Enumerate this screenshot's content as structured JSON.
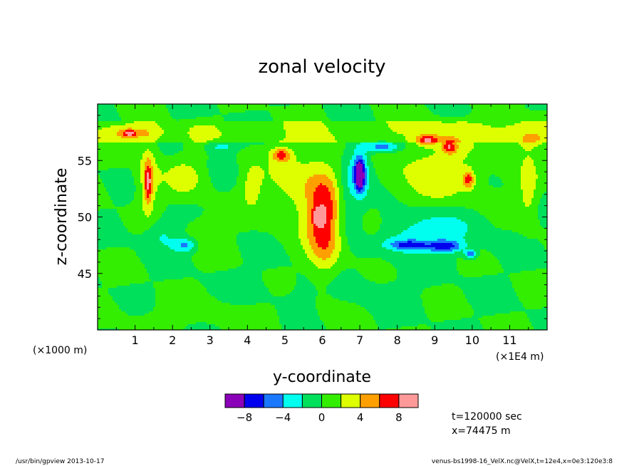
{
  "chart_data": {
    "type": "heatmap",
    "title": "zonal velocity",
    "xlabel": "y-coordinate",
    "ylabel": "z-coordinate",
    "x_unit_left": "(×1000 m)",
    "x_unit_right": "(×1E4 m)",
    "xlim": [
      0,
      12
    ],
    "ylim": [
      40,
      60
    ],
    "x_ticks": [
      "1",
      "2",
      "3",
      "4",
      "5",
      "6",
      "7",
      "8",
      "9",
      "10",
      "11"
    ],
    "y_ticks": [
      "45",
      "50",
      "55"
    ],
    "colorbar": {
      "levels": [
        -10,
        -8,
        -6,
        -4,
        -2,
        0,
        2,
        4,
        6,
        8,
        10
      ],
      "labels": [
        "−8",
        "−4",
        "0",
        "4",
        "8"
      ],
      "colors": [
        "#8a00b8",
        "#0000ee",
        "#1a78ff",
        "#00ffee",
        "#00e05a",
        "#33ee00",
        "#ddff00",
        "#ffa000",
        "#ff0000",
        "#ff9999"
      ]
    },
    "info": [
      "t=120000 sec",
      "x=74475 m"
    ],
    "blobs": [
      {
        "x": 6.05,
        "y": 49.5,
        "rx": 0.45,
        "ry": 4.5,
        "v": 7
      },
      {
        "x": 5.9,
        "y": 50.0,
        "rx": 0.12,
        "ry": 0.6,
        "v": 9
      },
      {
        "x": 5.4,
        "y": 52.5,
        "rx": 0.9,
        "ry": 3.5,
        "v": 3
      },
      {
        "x": 4.9,
        "y": 55.5,
        "rx": 0.25,
        "ry": 0.6,
        "v": 6
      },
      {
        "x": 1.35,
        "y": 53.5,
        "rx": 0.3,
        "ry": 3.5,
        "v": 3.5
      },
      {
        "x": 1.35,
        "y": 53.0,
        "rx": 0.1,
        "ry": 1.8,
        "v": 6
      },
      {
        "x": 0.9,
        "y": 57.4,
        "rx": 0.8,
        "ry": 0.6,
        "v": 3
      },
      {
        "x": 0.85,
        "y": 57.4,
        "rx": 0.15,
        "ry": 0.3,
        "v": 6
      },
      {
        "x": 2.3,
        "y": 53.5,
        "rx": 0.5,
        "ry": 1.5,
        "v": 3
      },
      {
        "x": 7.0,
        "y": 54.0,
        "rx": 0.3,
        "ry": 2.5,
        "v": -5
      },
      {
        "x": 7.0,
        "y": 53.7,
        "rx": 0.12,
        "ry": 1.3,
        "v": -9
      },
      {
        "x": 7.6,
        "y": 56.2,
        "rx": 0.45,
        "ry": 0.5,
        "v": -6
      },
      {
        "x": 8.7,
        "y": 48.8,
        "rx": 1.4,
        "ry": 2.0,
        "v": -3.5
      },
      {
        "x": 8.3,
        "y": 47.5,
        "rx": 0.5,
        "ry": 0.45,
        "v": -6
      },
      {
        "x": 9.3,
        "y": 47.4,
        "rx": 0.45,
        "ry": 0.5,
        "v": -6
      },
      {
        "x": 9.0,
        "y": 54.0,
        "rx": 1.3,
        "ry": 3.5,
        "v": 3
      },
      {
        "x": 8.8,
        "y": 56.8,
        "rx": 0.3,
        "ry": 0.5,
        "v": 6
      },
      {
        "x": 9.4,
        "y": 56.2,
        "rx": 0.2,
        "ry": 0.6,
        "v": 6
      },
      {
        "x": 9.9,
        "y": 53.3,
        "rx": 0.15,
        "ry": 0.8,
        "v": 6
      },
      {
        "x": 11.4,
        "y": 57.0,
        "rx": 0.9,
        "ry": 1.2,
        "v": 3
      },
      {
        "x": 11.5,
        "y": 52.5,
        "rx": 0.25,
        "ry": 3.0,
        "v": 3
      },
      {
        "x": 4.1,
        "y": 53.0,
        "rx": 0.3,
        "ry": 2.0,
        "v": 2.6
      },
      {
        "x": 7.3,
        "y": 49.2,
        "rx": 0.3,
        "ry": 1.2,
        "v": 3
      },
      {
        "x": 1.7,
        "y": 48.5,
        "rx": 0.5,
        "ry": 1.5,
        "v": -2.5
      },
      {
        "x": 2.35,
        "y": 47.5,
        "rx": 0.3,
        "ry": 0.6,
        "v": -4.5
      },
      {
        "x": 3.3,
        "y": 56.2,
        "rx": 0.35,
        "ry": 0.5,
        "v": -3
      },
      {
        "x": 9.95,
        "y": 46.7,
        "rx": 0.15,
        "ry": 0.35,
        "v": -6
      },
      {
        "x": 2.8,
        "y": 49.0,
        "rx": 0.6,
        "ry": 2.0,
        "v": 1.2
      },
      {
        "x": 6.6,
        "y": 52.0,
        "rx": 0.3,
        "ry": 2.5,
        "v": -2.5
      },
      {
        "x": 6.0,
        "y": 43.5,
        "rx": 2.5,
        "ry": 2.0,
        "v": -0.8
      },
      {
        "x": 3.0,
        "y": 41.5,
        "rx": 2.5,
        "ry": 1.5,
        "v": 0.8
      }
    ]
  },
  "footer": {
    "left": "/usr/bin/gpview  2013-10-17",
    "right": "venus-bs1998-16_VelX.nc@VelX,t=12e4,x=0e3:120e3:8"
  }
}
